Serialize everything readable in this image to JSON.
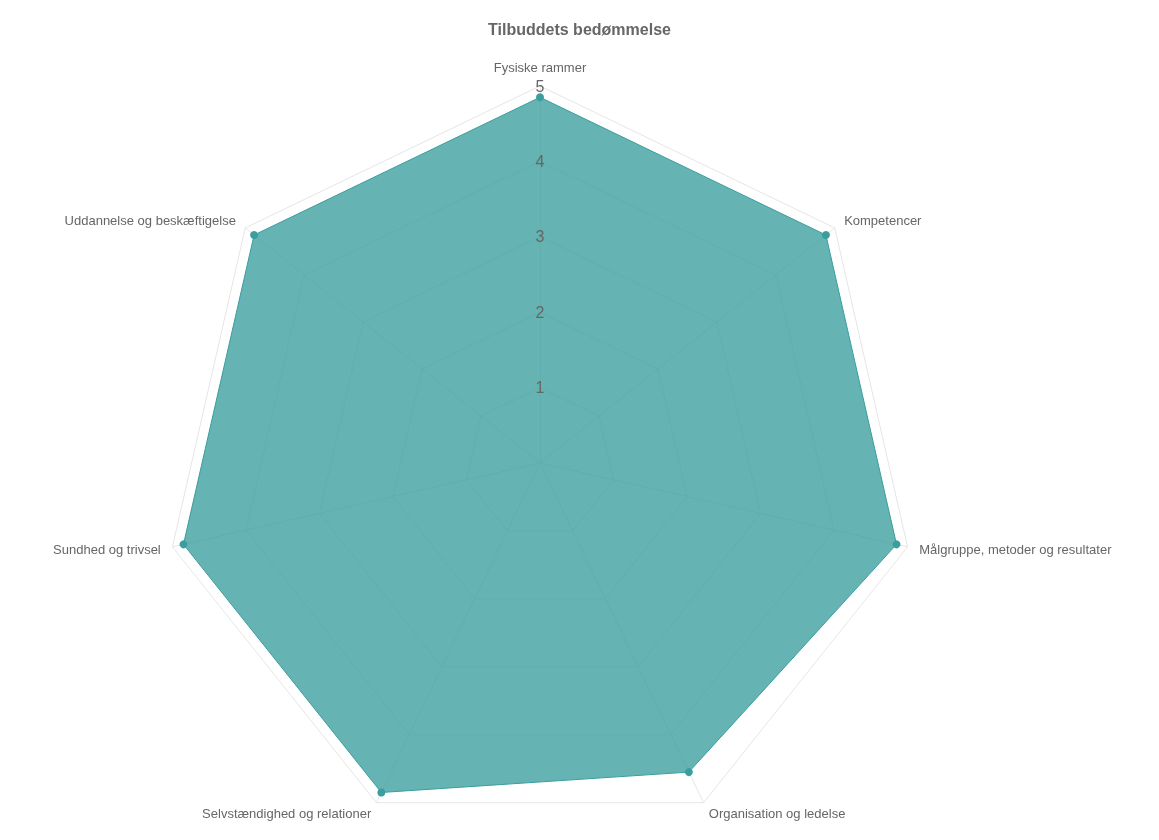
{
  "chart_data": {
    "type": "radar",
    "title": "Tilbuddets bedømmelse",
    "categories": [
      "Fysiske rammer",
      "Kompetencer",
      "Målgruppe, metoder og resultater",
      "Organisation og ledelse",
      "Selvstændighed og relationer",
      "Sundhed og trivsel",
      "Uddannelse og beskæftigelse"
    ],
    "series": [
      {
        "color": "#3a9e9e",
        "values": [
          4.85,
          4.85,
          4.85,
          4.55,
          4.85,
          4.85,
          4.85
        ]
      }
    ],
    "ylim": [
      0,
      5
    ],
    "yticks": [
      1,
      2,
      3,
      4,
      5
    ],
    "grid": true,
    "marker": "circle"
  }
}
